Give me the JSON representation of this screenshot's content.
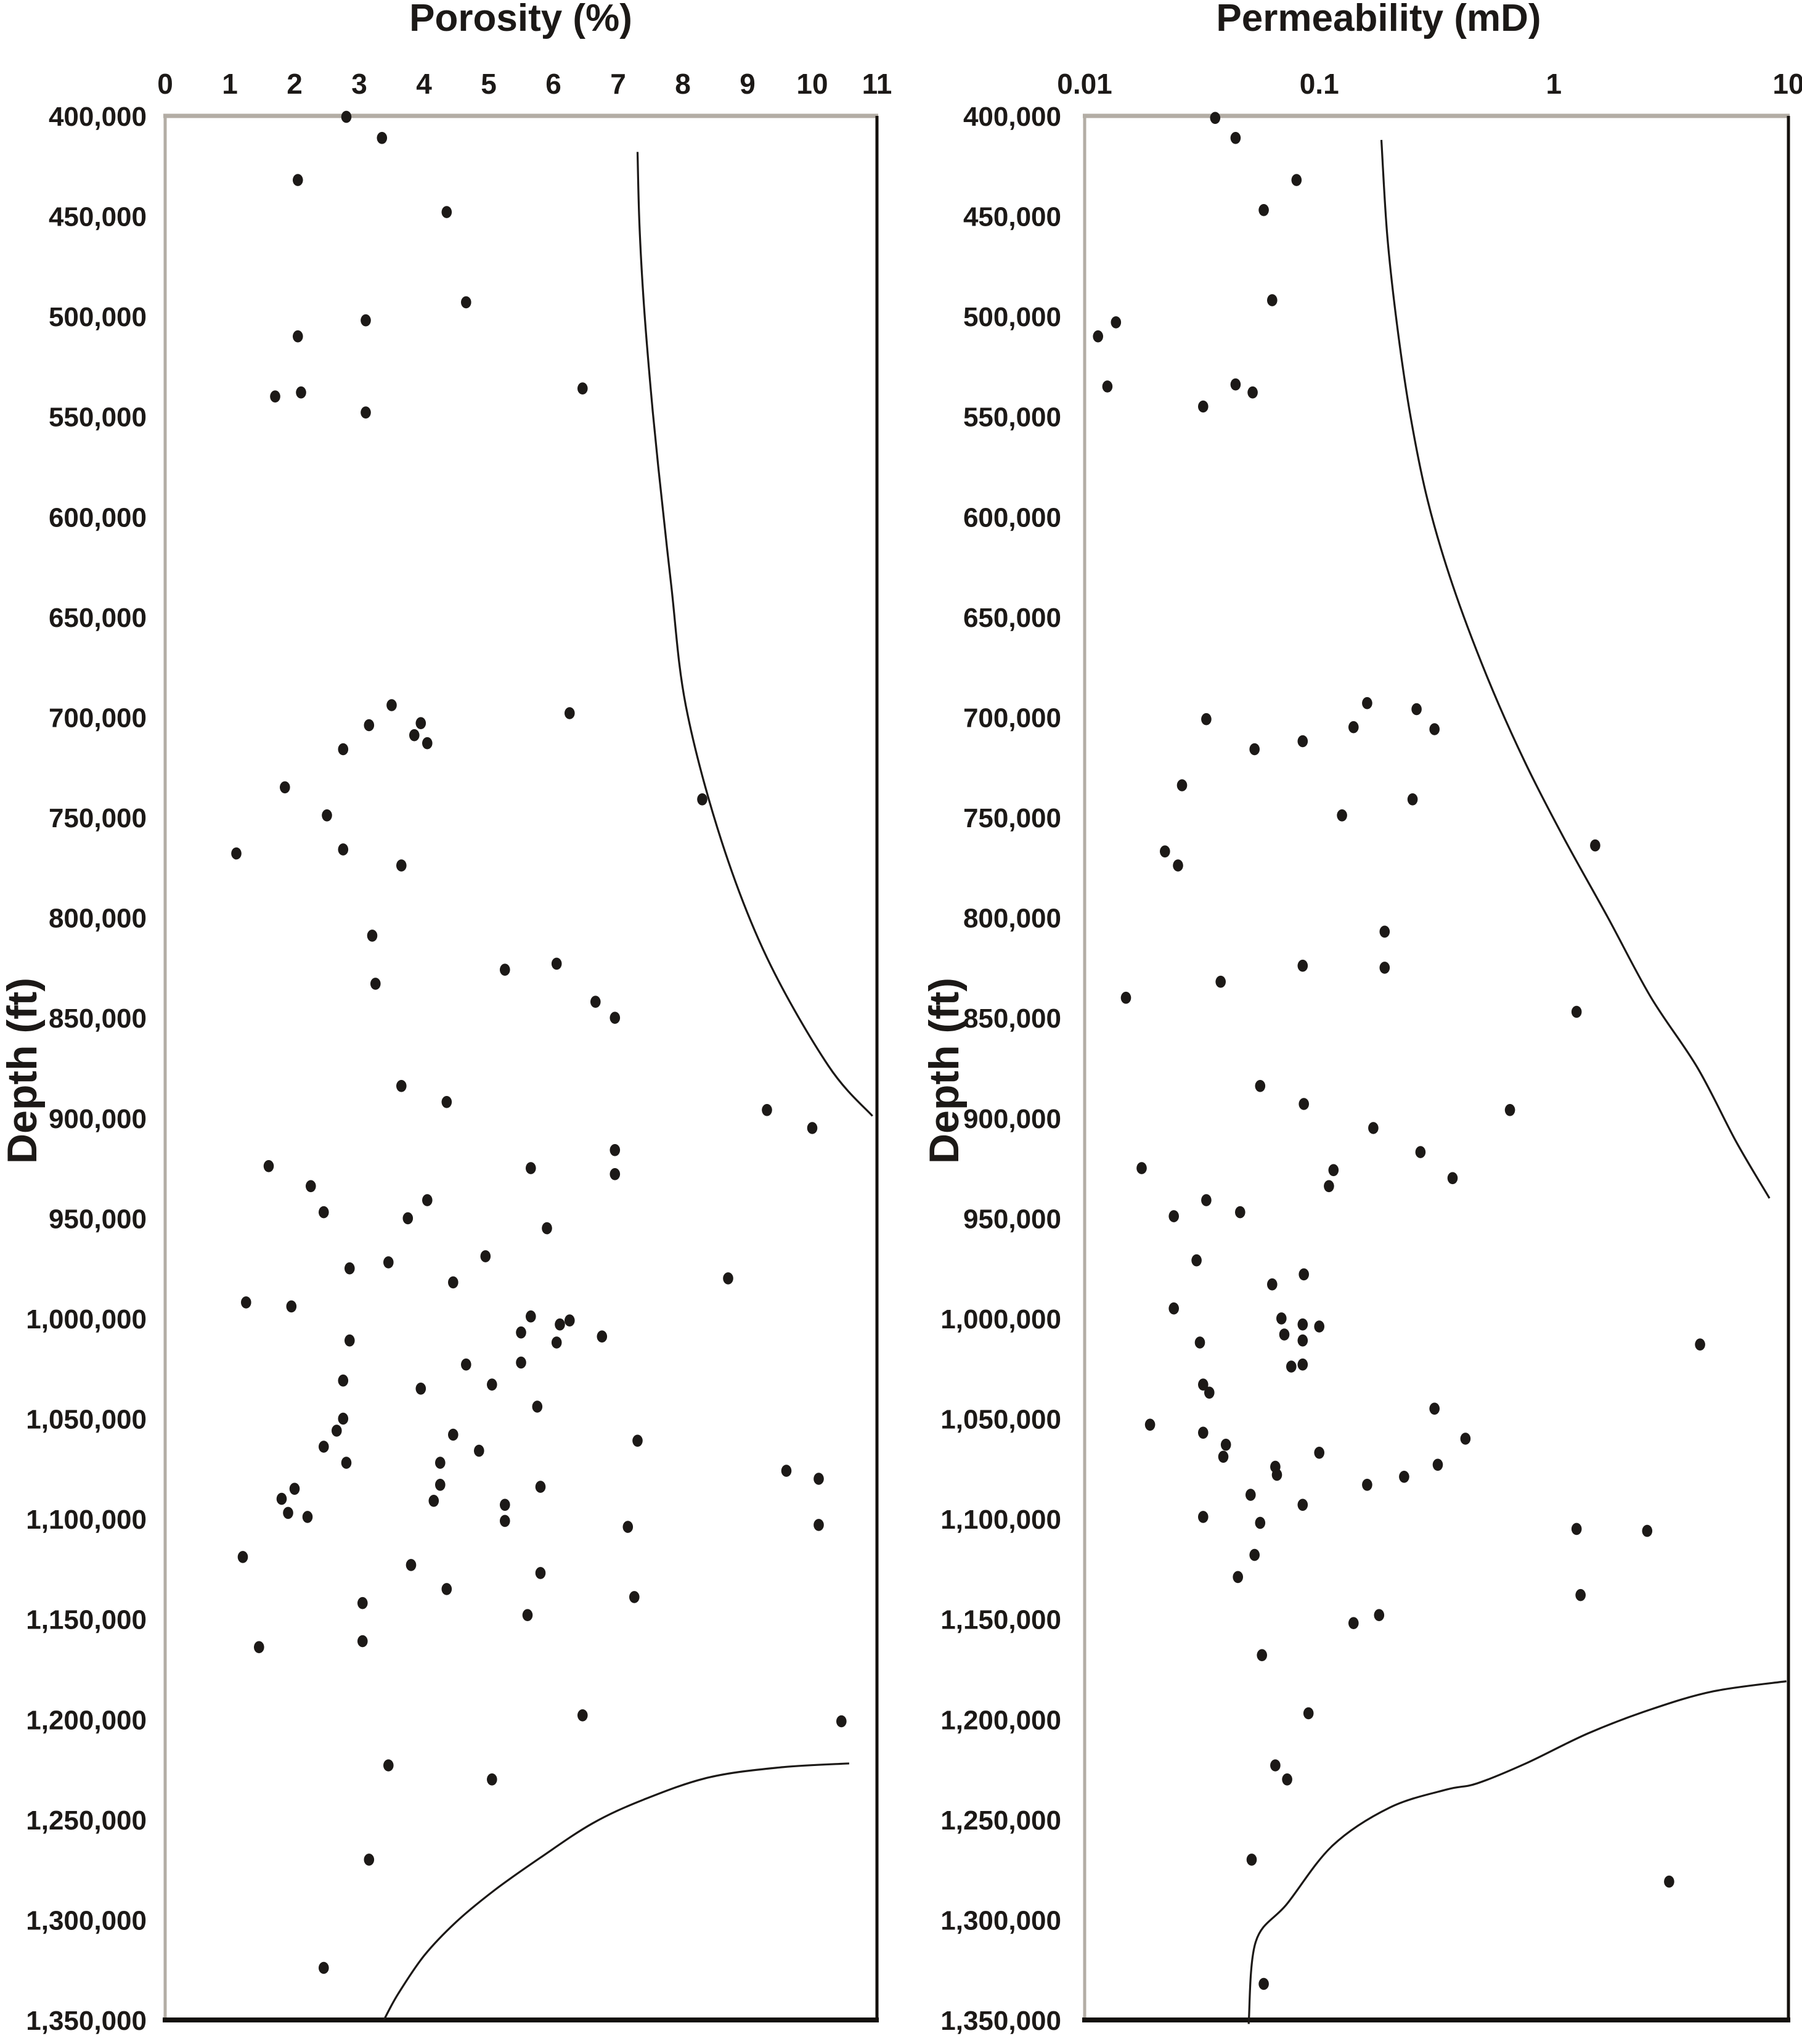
{
  "figure": {
    "background": "#ffffff",
    "text_color": "#1c1917",
    "dot_color": "#1c1917",
    "curve_color": "#1c1917",
    "border_gray": "#b3ada5",
    "border_black": "#14100c"
  },
  "chart_data": [
    {
      "type": "scatter",
      "title": "Porosity (%)",
      "ylabel": "Depth (ft)",
      "legend": null,
      "grid": false,
      "x_axis": {
        "scale": "linear",
        "min": 0,
        "max": 11,
        "position": "top",
        "tick_values": [
          0,
          1,
          2,
          3,
          4,
          5,
          6,
          7,
          8,
          9,
          10,
          11
        ],
        "tick_labels": [
          "0",
          "1",
          "2",
          "3",
          "4",
          "5",
          "6",
          "7",
          "8",
          "9",
          "10",
          "11"
        ]
      },
      "y_axis": {
        "min": 400000,
        "max": 1350000,
        "step": 50000,
        "direction": "down",
        "tick_labels": [
          "400,000",
          "450,000",
          "500,000",
          "550,000",
          "600,000",
          "650,000",
          "700,000",
          "750,000",
          "800,000",
          "850,000",
          "900,000",
          "950,000",
          "1,000,000",
          "1,050,000",
          "1,100,000",
          "1,150,000",
          "1,200,000",
          "1,250,000",
          "1,300,000",
          "1,350,000"
        ]
      },
      "points": [
        [
          2.8,
          400500
        ],
        [
          3.35,
          411000
        ],
        [
          2.05,
          432000
        ],
        [
          4.35,
          448000
        ],
        [
          4.65,
          493000
        ],
        [
          3.1,
          502000
        ],
        [
          2.05,
          510000
        ],
        [
          2.1,
          538000
        ],
        [
          1.7,
          540000
        ],
        [
          3.1,
          548000
        ],
        [
          6.45,
          536000
        ],
        [
          3.5,
          694000
        ],
        [
          6.25,
          698000
        ],
        [
          3.95,
          703000
        ],
        [
          3.15,
          704000
        ],
        [
          3.85,
          709000
        ],
        [
          4.05,
          713000
        ],
        [
          2.75,
          716000
        ],
        [
          1.85,
          735000
        ],
        [
          8.3,
          741000
        ],
        [
          2.5,
          749000
        ],
        [
          2.75,
          766000
        ],
        [
          1.1,
          768000
        ],
        [
          3.65,
          774000
        ],
        [
          3.2,
          809000
        ],
        [
          6.05,
          823000
        ],
        [
          5.25,
          826000
        ],
        [
          3.25,
          833000
        ],
        [
          6.65,
          842000
        ],
        [
          6.95,
          850000
        ],
        [
          3.65,
          884000
        ],
        [
          4.35,
          892000
        ],
        [
          9.3,
          896000
        ],
        [
          10.0,
          905000
        ],
        [
          6.95,
          916000
        ],
        [
          1.6,
          924000
        ],
        [
          5.65,
          925000
        ],
        [
          6.95,
          928000
        ],
        [
          2.25,
          934000
        ],
        [
          4.05,
          941000
        ],
        [
          2.45,
          947000
        ],
        [
          3.75,
          950000
        ],
        [
          5.9,
          955000
        ],
        [
          4.95,
          969000
        ],
        [
          3.45,
          972000
        ],
        [
          2.85,
          975000
        ],
        [
          8.7,
          980000
        ],
        [
          4.45,
          982000
        ],
        [
          1.25,
          992000
        ],
        [
          1.95,
          994000
        ],
        [
          5.65,
          999000
        ],
        [
          6.25,
          1001000
        ],
        [
          6.1,
          1003000
        ],
        [
          5.5,
          1007000
        ],
        [
          6.75,
          1009000
        ],
        [
          2.85,
          1011000
        ],
        [
          6.05,
          1012000
        ],
        [
          5.5,
          1022000
        ],
        [
          4.65,
          1023000
        ],
        [
          2.75,
          1031000
        ],
        [
          5.05,
          1033000
        ],
        [
          3.95,
          1035000
        ],
        [
          5.75,
          1044000
        ],
        [
          2.75,
          1050000
        ],
        [
          2.65,
          1056000
        ],
        [
          4.45,
          1058000
        ],
        [
          7.3,
          1061000
        ],
        [
          2.45,
          1064000
        ],
        [
          4.85,
          1066000
        ],
        [
          2.8,
          1072000
        ],
        [
          4.25,
          1072000
        ],
        [
          9.6,
          1076000
        ],
        [
          10.1,
          1080000
        ],
        [
          4.25,
          1083000
        ],
        [
          5.8,
          1084000
        ],
        [
          2.0,
          1085000
        ],
        [
          1.8,
          1090000
        ],
        [
          4.15,
          1091000
        ],
        [
          5.25,
          1093000
        ],
        [
          1.9,
          1097000
        ],
        [
          2.2,
          1099000
        ],
        [
          5.25,
          1101000
        ],
        [
          10.1,
          1103000
        ],
        [
          7.15,
          1104000
        ],
        [
          1.2,
          1119000
        ],
        [
          3.8,
          1123000
        ],
        [
          5.8,
          1127000
        ],
        [
          4.35,
          1135000
        ],
        [
          7.25,
          1139000
        ],
        [
          3.05,
          1142000
        ],
        [
          5.6,
          1148000
        ],
        [
          3.05,
          1161000
        ],
        [
          1.45,
          1164000
        ],
        [
          6.45,
          1198000
        ],
        [
          10.45,
          1201000
        ],
        [
          3.45,
          1223000
        ],
        [
          5.05,
          1230000
        ],
        [
          3.15,
          1270000
        ],
        [
          2.45,
          1324000
        ]
      ],
      "curves": [
        {
          "name": "upper-envelope",
          "points": [
            [
              7.3,
              418000
            ],
            [
              7.33,
              455000
            ],
            [
              7.4,
              495000
            ],
            [
              7.5,
              535000
            ],
            [
              7.62,
              575000
            ],
            [
              7.82,
              634000
            ],
            [
              8.05,
              695000
            ],
            [
              8.6,
              762000
            ],
            [
              9.3,
              820000
            ],
            [
              10.25,
              874000
            ],
            [
              10.93,
              899000
            ]
          ]
        },
        {
          "name": "lower-envelope",
          "points": [
            [
              3.38,
              1350000
            ],
            [
              3.6,
              1337000
            ],
            [
              4.0,
              1318000
            ],
            [
              4.5,
              1301000
            ],
            [
              5.1,
              1285000
            ],
            [
              5.8,
              1269000
            ],
            [
              6.6,
              1252000
            ],
            [
              7.4,
              1240000
            ],
            [
              8.4,
              1229000
            ],
            [
              9.5,
              1224000
            ],
            [
              10.57,
              1222000
            ]
          ]
        }
      ]
    },
    {
      "type": "scatter",
      "title": "Permeability (mD)",
      "ylabel": "Depth (ft)",
      "legend": null,
      "grid": false,
      "x_axis": {
        "scale": "log",
        "min": 0.01,
        "max": 10,
        "position": "top",
        "tick_values": [
          0.01,
          0.1,
          1,
          10
        ],
        "tick_labels": [
          "0.01",
          "0.1",
          "1",
          "10"
        ]
      },
      "y_axis": {
        "min": 400000,
        "max": 1350000,
        "step": 50000,
        "direction": "down",
        "tick_labels": [
          "400,000",
          "450,000",
          "500,000",
          "550,000",
          "600,000",
          "650,000",
          "700,000",
          "750,000",
          "800,000",
          "850,000",
          "900,000",
          "950,000",
          "1,000,000",
          "1,050,000",
          "1,100,000",
          "1,150,000",
          "1,200,000",
          "1,250,000",
          "1,300,000",
          "1,350,000"
        ]
      },
      "points": [
        [
          0.036,
          401000
        ],
        [
          0.044,
          411000
        ],
        [
          0.08,
          432000
        ],
        [
          0.058,
          447000
        ],
        [
          0.063,
          492000
        ],
        [
          0.0136,
          503000
        ],
        [
          0.0114,
          510000
        ],
        [
          0.0125,
          535000
        ],
        [
          0.044,
          534000
        ],
        [
          0.052,
          538000
        ],
        [
          0.032,
          545000
        ],
        [
          0.16,
          693000
        ],
        [
          0.26,
          696000
        ],
        [
          0.033,
          701000
        ],
        [
          0.14,
          705000
        ],
        [
          0.31,
          706000
        ],
        [
          0.085,
          712000
        ],
        [
          0.053,
          716000
        ],
        [
          0.026,
          734000
        ],
        [
          0.25,
          741000
        ],
        [
          0.125,
          749000
        ],
        [
          1.5,
          764000
        ],
        [
          0.022,
          767000
        ],
        [
          0.025,
          774000
        ],
        [
          0.19,
          807000
        ],
        [
          0.085,
          824000
        ],
        [
          0.19,
          825000
        ],
        [
          0.038,
          832000
        ],
        [
          0.015,
          840000
        ],
        [
          1.25,
          847000
        ],
        [
          0.056,
          884000
        ],
        [
          0.086,
          893000
        ],
        [
          0.65,
          896000
        ],
        [
          0.17,
          905000
        ],
        [
          0.27,
          917000
        ],
        [
          0.0175,
          925000
        ],
        [
          0.115,
          926000
        ],
        [
          0.37,
          930000
        ],
        [
          0.11,
          934000
        ],
        [
          0.033,
          941000
        ],
        [
          0.046,
          947000
        ],
        [
          0.024,
          949000
        ],
        [
          0.03,
          971000
        ],
        [
          0.086,
          978000
        ],
        [
          0.063,
          983000
        ],
        [
          0.024,
          995000
        ],
        [
          0.069,
          1000000
        ],
        [
          0.085,
          1003000
        ],
        [
          0.1,
          1004000
        ],
        [
          0.071,
          1008000
        ],
        [
          0.085,
          1011000
        ],
        [
          0.031,
          1012000
        ],
        [
          4.2,
          1013000
        ],
        [
          0.085,
          1023000
        ],
        [
          0.076,
          1024000
        ],
        [
          0.032,
          1033000
        ],
        [
          0.034,
          1037000
        ],
        [
          0.31,
          1045000
        ],
        [
          0.019,
          1053000
        ],
        [
          0.032,
          1057000
        ],
        [
          0.42,
          1060000
        ],
        [
          0.04,
          1063000
        ],
        [
          0.1,
          1067000
        ],
        [
          0.039,
          1069000
        ],
        [
          0.32,
          1073000
        ],
        [
          0.065,
          1074000
        ],
        [
          0.066,
          1078000
        ],
        [
          0.23,
          1079000
        ],
        [
          0.16,
          1083000
        ],
        [
          0.051,
          1088000
        ],
        [
          0.085,
          1093000
        ],
        [
          0.032,
          1099000
        ],
        [
          0.056,
          1102000
        ],
        [
          1.25,
          1105000
        ],
        [
          2.5,
          1106000
        ],
        [
          0.053,
          1118000
        ],
        [
          0.045,
          1129000
        ],
        [
          1.3,
          1138000
        ],
        [
          0.18,
          1148000
        ],
        [
          0.14,
          1152000
        ],
        [
          0.057,
          1168000
        ],
        [
          0.09,
          1197000
        ],
        [
          0.065,
          1223000
        ],
        [
          0.073,
          1230000
        ],
        [
          0.0515,
          1270000
        ],
        [
          3.1,
          1281000
        ],
        [
          0.058,
          1332000
        ]
      ],
      "curves": [
        {
          "name": "upper-envelope",
          "points": [
            [
              0.184,
              412000
            ],
            [
              0.195,
              460000
            ],
            [
              0.215,
              505000
            ],
            [
              0.245,
              550000
            ],
            [
              0.29,
              592000
            ],
            [
              0.37,
              634000
            ],
            [
              0.52,
              680000
            ],
            [
              0.75,
              722000
            ],
            [
              1.1,
              760000
            ],
            [
              1.7,
              800000
            ],
            [
              2.6,
              840000
            ],
            [
              4.1,
              875000
            ],
            [
              6.0,
              912000
            ],
            [
              8.3,
              940000
            ]
          ]
        },
        {
          "name": "lower-envelope",
          "points": [
            [
              0.05,
              1352000
            ],
            [
              0.0536,
              1311000
            ],
            [
              0.073,
              1292000
            ],
            [
              0.114,
              1263000
            ],
            [
              0.2,
              1244000
            ],
            [
              0.35,
              1235000
            ],
            [
              0.47,
              1232000
            ],
            [
              0.76,
              1222000
            ],
            [
              1.4,
              1207000
            ],
            [
              2.6,
              1195000
            ],
            [
              4.8,
              1186000
            ],
            [
              9.8,
              1181000
            ]
          ]
        }
      ]
    }
  ]
}
